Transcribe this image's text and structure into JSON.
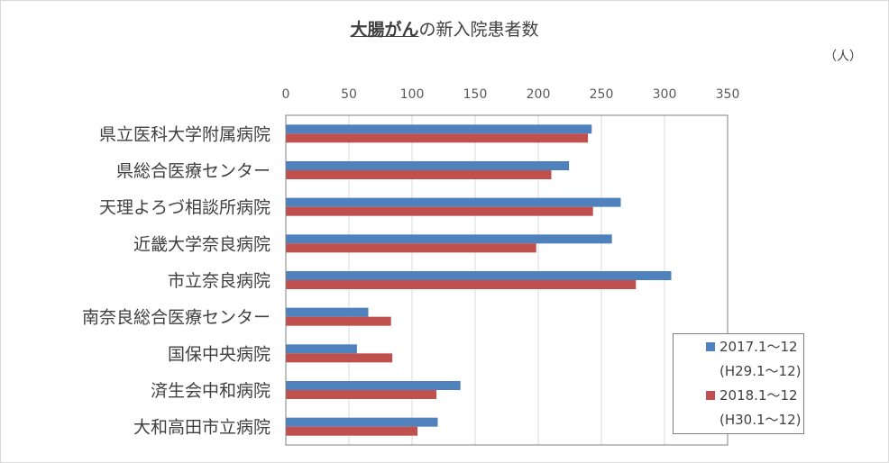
{
  "chart_data": {
    "type": "bar",
    "orientation": "horizontal",
    "title_emphasis": "大腸がん",
    "title_rest": "の新入院患者数",
    "unit": "（人）",
    "xlim": [
      0,
      350
    ],
    "xticks": [
      "0",
      "50",
      "100",
      "150",
      "200",
      "250",
      "300",
      "350"
    ],
    "grid": true,
    "legend_position": "bottom-right",
    "categories": [
      "県立医科大学附属病院",
      "県総合医療センター",
      "天理よろづ相談所病院",
      "近畿大学奈良病院",
      "市立奈良病院",
      "南奈良総合医療センター",
      "国保中央病院",
      "済生会中和病院",
      "大和高田市立病院"
    ],
    "series": [
      {
        "name": "2017.1～12",
        "name_sub": "(H29.1～12)",
        "color": "#4f81bd",
        "values": [
          242,
          224,
          265,
          258,
          305,
          65,
          56,
          138,
          120
        ]
      },
      {
        "name": "2018.1～12",
        "name_sub": "(H30.1～12)",
        "color": "#c0504d",
        "values": [
          239,
          210,
          243,
          198,
          277,
          83,
          84,
          119,
          104
        ]
      }
    ]
  }
}
